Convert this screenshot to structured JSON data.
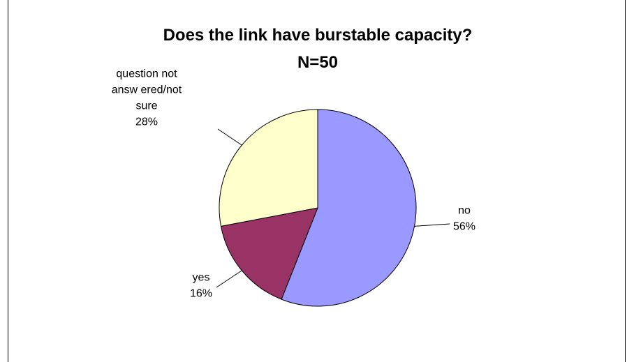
{
  "chart_data": {
    "type": "pie",
    "title": "Does the link have burstable capacity?",
    "subtitle": "N=50",
    "slices": [
      {
        "label_lines": [
          "no"
        ],
        "percent_label": "56%",
        "value": 56,
        "color": "#9999ff"
      },
      {
        "label_lines": [
          "yes"
        ],
        "percent_label": "16%",
        "value": 16,
        "color": "#993366"
      },
      {
        "label_lines": [
          "question not",
          "answ ered/not",
          "sure"
        ],
        "percent_label": "28%",
        "value": 28,
        "color": "#ffffcc"
      }
    ],
    "start_angle_deg": 0,
    "direction": "clockwise",
    "legend": "none",
    "slice_border_color": "#000000"
  }
}
